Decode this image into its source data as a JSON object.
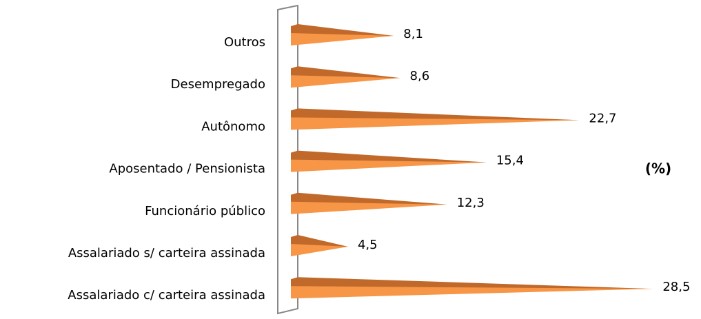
{
  "chart_data": {
    "type": "bar",
    "orientation": "horizontal",
    "categories": [
      "Outros",
      "Desempregado",
      "Autônomo",
      "Aposentado / Pensionista",
      "Funcionário público",
      "Assalariado s/ carteira assinada",
      "Assalariado c/ carteira assinada"
    ],
    "values": [
      8.1,
      8.6,
      22.7,
      15.4,
      12.3,
      4.5,
      28.5
    ],
    "value_labels": [
      "8,1",
      "8,6",
      "22,7",
      "15,4",
      "12,3",
      "4,5",
      "28,5"
    ],
    "color": "#f79646",
    "xlim": [
      0,
      30
    ],
    "annotation": "(%)"
  }
}
